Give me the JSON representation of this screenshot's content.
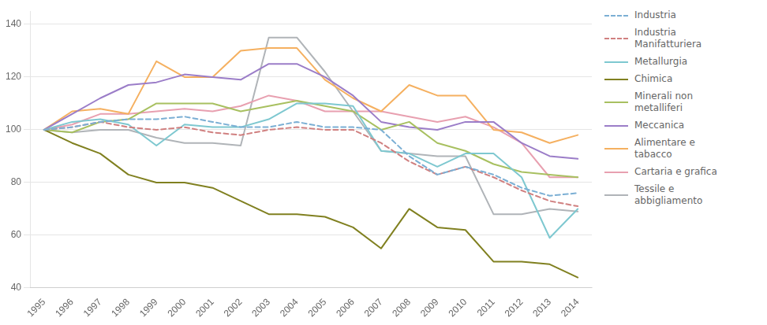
{
  "chart_data": {
    "type": "line",
    "x": [
      1995,
      1996,
      1997,
      1998,
      1999,
      2000,
      2001,
      2002,
      2003,
      2004,
      2005,
      2006,
      2007,
      2008,
      2009,
      2010,
      2011,
      2012,
      2013,
      2014
    ],
    "series": [
      {
        "name": "Industria",
        "color": "#7BAFD4",
        "line_style": "dashed",
        "values": [
          100,
          101,
          103,
          104,
          104,
          105,
          103,
          101,
          101,
          103,
          101,
          101,
          100,
          90,
          83,
          86,
          83,
          78,
          75,
          76
        ]
      },
      {
        "name": "Industria\nManifatturiera",
        "color": "#D08080",
        "line_style": "dashed",
        "values": [
          100,
          101,
          103,
          101,
          100,
          101,
          99,
          98,
          100,
          101,
          100,
          100,
          95,
          88,
          83,
          86,
          82,
          77,
          73,
          71
        ]
      },
      {
        "name": "Metallurgia",
        "color": "#7EC8D0",
        "line_style": "solid",
        "values": [
          100,
          103,
          104,
          102,
          94,
          102,
          101,
          101,
          104,
          110,
          110,
          109,
          92,
          91,
          86,
          91,
          91,
          82,
          59,
          70
        ]
      },
      {
        "name": "Chimica",
        "color": "#808020",
        "line_style": "solid",
        "values": [
          100,
          95,
          91,
          83,
          80,
          80,
          78,
          73,
          68,
          68,
          67,
          63,
          55,
          70,
          63,
          62,
          50,
          50,
          49,
          44
        ]
      },
      {
        "name": "Minerali non\nmetalliferi",
        "color": "#A8C060",
        "line_style": "solid",
        "values": [
          100,
          99,
          103,
          104,
          110,
          110,
          110,
          107,
          109,
          111,
          109,
          107,
          100,
          103,
          95,
          92,
          87,
          84,
          83,
          82
        ]
      },
      {
        "name": "Meccanica",
        "color": "#9B7DC8",
        "line_style": "solid",
        "values": [
          100,
          106,
          112,
          117,
          118,
          121,
          120,
          119,
          125,
          125,
          120,
          113,
          103,
          101,
          100,
          103,
          103,
          95,
          90,
          89
        ]
      },
      {
        "name": "Alimentare e\ntabacco",
        "color": "#F5B060",
        "line_style": "solid",
        "values": [
          100,
          107,
          108,
          106,
          126,
          120,
          120,
          130,
          131,
          131,
          119,
          112,
          107,
          117,
          113,
          113,
          100,
          99,
          95,
          98
        ]
      },
      {
        "name": "Cartaria e grafica",
        "color": "#E8A0B0",
        "line_style": "solid",
        "values": [
          100,
          102,
          106,
          106,
          107,
          108,
          107,
          109,
          113,
          111,
          107,
          107,
          107,
          105,
          103,
          105,
          101,
          95,
          82,
          82
        ]
      },
      {
        "name": "Tessile e\nabbigliamento",
        "color": "#B0B4B8",
        "line_style": "solid",
        "values": [
          100,
          99,
          100,
          100,
          97,
          95,
          95,
          94,
          135,
          135,
          122,
          107,
          92,
          91,
          90,
          90,
          68,
          68,
          70,
          69
        ]
      }
    ],
    "xlim": [
      1994.5,
      2014.5
    ],
    "xticks": [
      1995,
      1996,
      1997,
      1998,
      1999,
      2000,
      2001,
      2002,
      2003,
      2004,
      2005,
      2006,
      2007,
      2008,
      2009,
      2010,
      2011,
      2012,
      2013,
      2014
    ],
    "ylim": [
      40,
      145
    ],
    "yticks": [
      40,
      60,
      80,
      100,
      120,
      140
    ],
    "grid": "y",
    "legend": "right"
  }
}
